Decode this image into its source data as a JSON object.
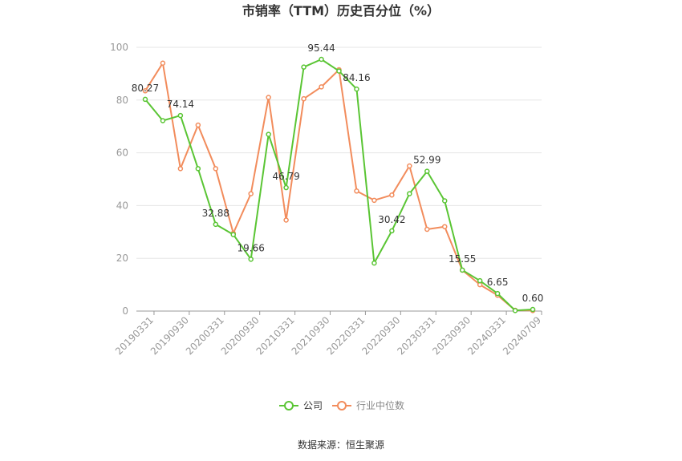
{
  "source": "数据来源：恒生聚源",
  "chart_data": {
    "type": "line",
    "title": "市销率（TTM）历史百分位（%）",
    "xlabel": "",
    "ylabel": "",
    "ylim": [
      0,
      100
    ],
    "yticks": [
      "0",
      "20",
      "40",
      "60",
      "80",
      "100"
    ],
    "grid": true,
    "legend": "bottom-center",
    "x": [
      "20190331",
      "20190630",
      "20190930",
      "20191231",
      "20200331",
      "20200630",
      "20200930",
      "20201231",
      "20210331",
      "20210630",
      "20210930",
      "20211231",
      "20220331",
      "20220630",
      "20220930",
      "20221231",
      "20230331",
      "20230630",
      "20230930",
      "20231231",
      "20240331",
      "20240630",
      "20240709"
    ],
    "x_tick_labels": [
      "20190331",
      "",
      "20190930",
      "",
      "20200331",
      "",
      "20200930",
      "",
      "20210331",
      "",
      "20210930",
      "",
      "20220331",
      "",
      "20220930",
      "",
      "20230331",
      "",
      "20230930",
      "",
      "20240331",
      "",
      "20240709"
    ],
    "series": [
      {
        "name": "公司",
        "color": "#5ac534",
        "values": [
          80.27,
          72.2,
          74.14,
          54.0,
          32.88,
          29.0,
          19.66,
          67.0,
          46.79,
          92.5,
          95.44,
          91.0,
          84.16,
          18.2,
          30.42,
          44.5,
          52.99,
          41.8,
          15.55,
          11.5,
          6.65,
          0.2,
          0.6
        ],
        "labels": [
          "80.27",
          "",
          "74.14",
          "",
          "32.88",
          "",
          "19.66",
          "",
          "46.79",
          "",
          "95.44",
          "",
          "84.16",
          "",
          "30.42",
          "",
          "52.99",
          "",
          "15.55",
          "",
          "6.65",
          "",
          "0.60"
        ]
      },
      {
        "name": "行业中位数",
        "color": "#f28c5c",
        "values": [
          83.5,
          94.0,
          54.0,
          70.5,
          54.0,
          29.5,
          44.5,
          81.0,
          34.5,
          80.5,
          85.0,
          91.5,
          45.5,
          42.0,
          44.0,
          55.0,
          31.0,
          32.0,
          15.5,
          10.0,
          6.0,
          0.3,
          0.2
        ]
      }
    ]
  }
}
